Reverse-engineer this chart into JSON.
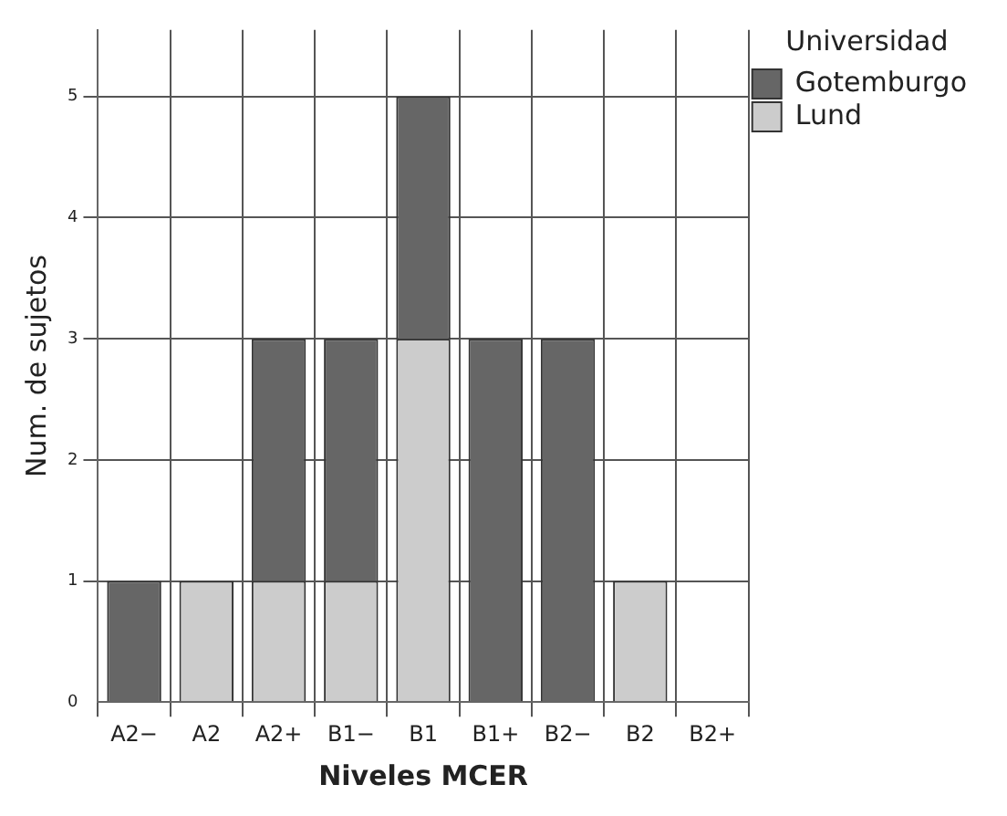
{
  "chart_data": {
    "type": "bar",
    "stacked": true,
    "xlabel": "Niveles MCER",
    "ylabel": "Num. de sujetos",
    "legend_title": "Universidad",
    "categories": [
      "A2−",
      "A2",
      "A2+",
      "B1−",
      "B1",
      "B1+",
      "B2−",
      "B2",
      "B2+"
    ],
    "series": [
      {
        "name": "Lund",
        "color": "#cccccc",
        "values": [
          0,
          1,
          1,
          1,
          3,
          0,
          0,
          1,
          0
        ]
      },
      {
        "name": "Gotemburgo",
        "color": "#666666",
        "values": [
          1,
          0,
          2,
          2,
          2,
          3,
          3,
          0,
          0
        ]
      }
    ],
    "ylim": [
      0,
      5.55
    ],
    "yticks": [
      0,
      1,
      2,
      3,
      4,
      5
    ],
    "grid": true,
    "legend": "top right"
  }
}
